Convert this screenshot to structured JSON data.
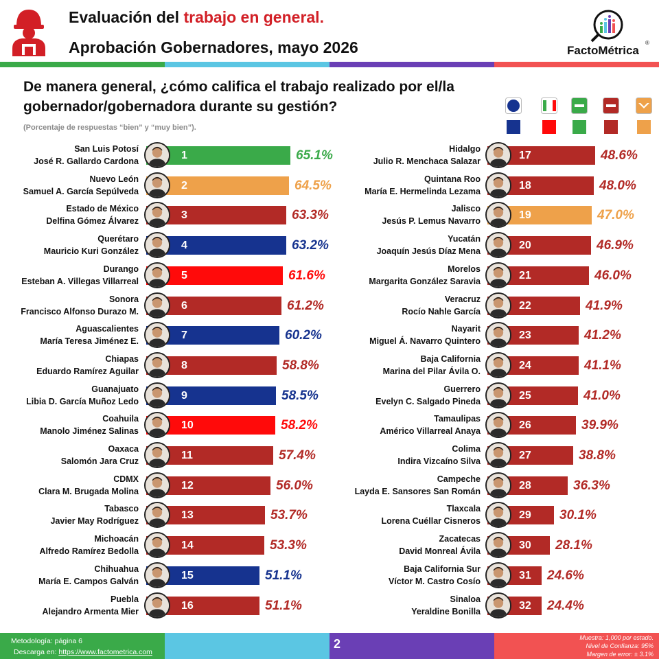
{
  "header": {
    "title_prefix": "Evaluación del ",
    "title_highlight": "trabajo en general.",
    "subtitle": "Aprobación Gobernadores, mayo 2026",
    "logo_text": "FactoMétrica",
    "logo_reg": "®"
  },
  "question": "De manera general, ¿cómo califica el trabajo realizado por el/la gobernador/gobernadora durante su gestión?",
  "subnote": "(Porcentaje de respuestas “bien” y “muy bien”).",
  "colors": {
    "PAN": "#16338f",
    "PRI": "#ff0a0a",
    "PVEM": "#3aaa49",
    "MORENA": "#b22a26",
    "MC": "#eea14a",
    "accent_red": "#d21f26",
    "strip": [
      "#3aaa49",
      "#5bc6e3",
      "#6a3fb5",
      "#f25252"
    ],
    "footer": [
      "#3aaa49",
      "#5bc6e3",
      "#6a3fb5",
      "#f25252"
    ]
  },
  "legend": [
    {
      "party": "PAN",
      "label": "PAN",
      "icon": "pan-logo-icon"
    },
    {
      "party": "PRI",
      "label": "PRI",
      "icon": "pri-logo-icon"
    },
    {
      "party": "PVEM",
      "label": "VERDE",
      "icon": "verde-logo-icon"
    },
    {
      "party": "MORENA",
      "label": "morena",
      "icon": "morena-logo-icon"
    },
    {
      "party": "MC",
      "label": "MC",
      "icon": "mc-logo-icon"
    }
  ],
  "chart_data": {
    "type": "bar",
    "orientation": "horizontal",
    "unit": "%",
    "xlim": [
      0,
      70
    ],
    "grid": false,
    "items": [
      {
        "rank": 1,
        "state": "San Luis Potosí",
        "governor": "José R. Gallardo Cardona",
        "value": 65.1,
        "party": "PVEM"
      },
      {
        "rank": 2,
        "state": "Nuevo León",
        "governor": "Samuel A. García Sepúlveda",
        "value": 64.5,
        "party": "MC"
      },
      {
        "rank": 3,
        "state": "Estado de México",
        "governor": "Delfina Gómez Álvarez",
        "value": 63.3,
        "party": "MORENA"
      },
      {
        "rank": 4,
        "state": "Querétaro",
        "governor": "Mauricio Kuri González",
        "value": 63.2,
        "party": "PAN"
      },
      {
        "rank": 5,
        "state": "Durango",
        "governor": "Esteban A. Villegas Villarreal",
        "value": 61.6,
        "party": "PRI"
      },
      {
        "rank": 6,
        "state": "Sonora",
        "governor": "Francisco Alfonso Durazo M.",
        "value": 61.2,
        "party": "MORENA"
      },
      {
        "rank": 7,
        "state": "Aguascalientes",
        "governor": "María Teresa Jiménez E.",
        "value": 60.2,
        "party": "PAN"
      },
      {
        "rank": 8,
        "state": "Chiapas",
        "governor": "Eduardo Ramírez Aguilar",
        "value": 58.8,
        "party": "MORENA"
      },
      {
        "rank": 9,
        "state": "Guanajuato",
        "governor": "Libia D. García Muñoz Ledo",
        "value": 58.5,
        "party": "PAN"
      },
      {
        "rank": 10,
        "state": "Coahuila",
        "governor": "Manolo Jiménez Salinas",
        "value": 58.2,
        "party": "PRI"
      },
      {
        "rank": 11,
        "state": "Oaxaca",
        "governor": "Salomón Jara Cruz",
        "value": 57.4,
        "party": "MORENA"
      },
      {
        "rank": 12,
        "state": "CDMX",
        "governor": "Clara M. Brugada Molina",
        "value": 56.0,
        "party": "MORENA"
      },
      {
        "rank": 13,
        "state": "Tabasco",
        "governor": "Javier May Rodríguez",
        "value": 53.7,
        "party": "MORENA"
      },
      {
        "rank": 14,
        "state": "Michoacán",
        "governor": "Alfredo Ramírez Bedolla",
        "value": 53.3,
        "party": "MORENA"
      },
      {
        "rank": 15,
        "state": "Chihuahua",
        "governor": "María E. Campos Galván",
        "value": 51.1,
        "party": "PAN"
      },
      {
        "rank": 16,
        "state": "Puebla",
        "governor": "Alejandro Armenta Mier",
        "value": 51.1,
        "party": "MORENA"
      },
      {
        "rank": 17,
        "state": "Hidalgo",
        "governor": "Julio R. Menchaca Salazar",
        "value": 48.6,
        "party": "MORENA"
      },
      {
        "rank": 18,
        "state": "Quintana Roo",
        "governor": "María E. Hermelinda Lezama",
        "value": 48.0,
        "party": "MORENA"
      },
      {
        "rank": 19,
        "state": "Jalisco",
        "governor": "Jesús P. Lemus Navarro",
        "value": 47.0,
        "party": "MC"
      },
      {
        "rank": 20,
        "state": "Yucatán",
        "governor": "Joaquín Jesús Díaz Mena",
        "value": 46.9,
        "party": "MORENA"
      },
      {
        "rank": 21,
        "state": "Morelos",
        "governor": "Margarita González Saravia",
        "value": 46.0,
        "party": "MORENA"
      },
      {
        "rank": 22,
        "state": "Veracruz",
        "governor": "Rocío Nahle García",
        "value": 41.9,
        "party": "MORENA"
      },
      {
        "rank": 23,
        "state": "Nayarit",
        "governor": "Miguel Á. Navarro Quintero",
        "value": 41.2,
        "party": "MORENA"
      },
      {
        "rank": 24,
        "state": "Baja California",
        "governor": "Marina del Pilar Ávila O.",
        "value": 41.1,
        "party": "MORENA"
      },
      {
        "rank": 25,
        "state": "Guerrero",
        "governor": "Evelyn C. Salgado Pineda",
        "value": 41.0,
        "party": "MORENA"
      },
      {
        "rank": 26,
        "state": "Tamaulipas",
        "governor": "Américo Villarreal Anaya",
        "value": 39.9,
        "party": "MORENA"
      },
      {
        "rank": 27,
        "state": "Colima",
        "governor": "Indira Vizcaíno Silva",
        "value": 38.8,
        "party": "MORENA"
      },
      {
        "rank": 28,
        "state": "Campeche",
        "governor": "Layda E. Sansores San Román",
        "value": 36.3,
        "party": "MORENA"
      },
      {
        "rank": 29,
        "state": "Tlaxcala",
        "governor": "Lorena Cuéllar Cisneros",
        "value": 30.1,
        "party": "MORENA"
      },
      {
        "rank": 30,
        "state": "Zacatecas",
        "governor": "David Monreal Ávila",
        "value": 28.1,
        "party": "MORENA"
      },
      {
        "rank": 31,
        "state": "Baja California Sur",
        "governor": "Víctor M. Castro Cosío",
        "value": 24.6,
        "party": "MORENA"
      },
      {
        "rank": 32,
        "state": "Sinaloa",
        "governor": "Yeraldine Bonilla",
        "value": 24.4,
        "party": "MORENA"
      }
    ]
  },
  "footer": {
    "methodology": "Metodología: página 6",
    "download_prefix": "Descarga en: ",
    "download_url": "https://www.factometrica.com",
    "page_number": "2",
    "sample": "Muestra:  1,000 por estado.",
    "confidence": "Nivel de Confianza: 95%",
    "margin": "Margen de error: ± 3.1%"
  }
}
